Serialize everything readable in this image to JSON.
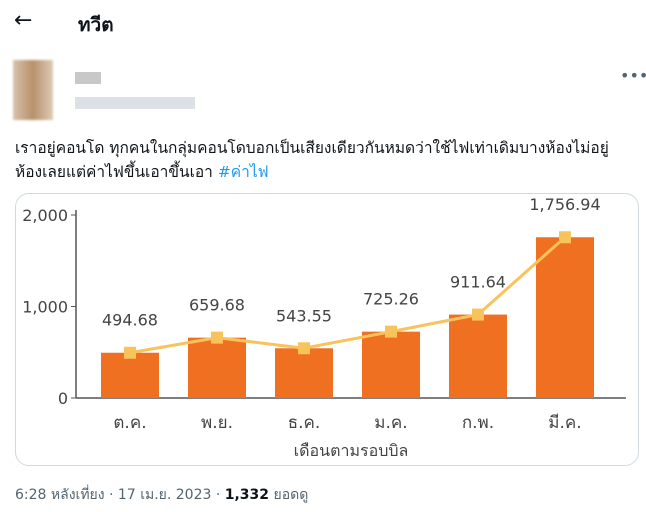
{
  "header": {
    "back_icon": "arrow-left-icon",
    "title": "ทวีต"
  },
  "tweet": {
    "more_icon": "more-horizontal-icon",
    "text": "เราอยู่คอนโด ทุกคนในกลุ่มคอนโดบอกเป็นเสียงเดียวกันหมดว่าใช้ไฟเท่าเดิมบางห้องไม่อยู่ห้องเลยแต่ค่าไฟขึ้นเอาขึ้นเอา",
    "hashtag": "#ค่าไฟ",
    "time": "6:28 หลังเที่ยง · 17 เม.ย. 2023 · ",
    "views": "1,332",
    "views_label": " ยอดดู"
  },
  "chart_data": {
    "type": "bar",
    "categories": [
      "ต.ค.",
      "พ.ย.",
      "ธ.ค.",
      "ม.ค.",
      "ก.พ.",
      "มี.ค."
    ],
    "values": [
      494.68,
      659.68,
      543.55,
      725.26,
      911.64,
      1756.94
    ],
    "value_labels": [
      "494.68",
      "659.68",
      "543.55",
      "725.26",
      "911.64",
      "1,756.94"
    ],
    "xlabel": "เดือนตามรอบบิล",
    "ylabel": "",
    "ylim": [
      0,
      2000
    ],
    "yticks": [
      0,
      1000,
      2000
    ],
    "ytick_labels": [
      "0",
      "1,000",
      "2,000"
    ],
    "overlay": "line with square markers",
    "colors": {
      "bar": "#f07021",
      "line": "#f8c35a"
    }
  },
  "colors": {
    "link": "#1d9bf0"
  }
}
